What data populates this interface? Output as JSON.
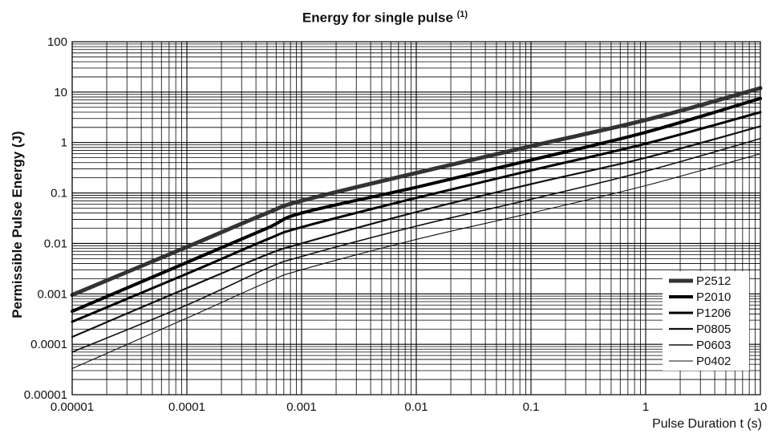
{
  "chart_data": {
    "type": "line",
    "title": "Energy for single pulse",
    "title_superscript": "(1)",
    "xlabel": "Pulse Duration t (s)",
    "ylabel": "Permissible Pulse Energy (J)",
    "x_scale": "log",
    "y_scale": "log",
    "xlim": [
      1e-05,
      10
    ],
    "ylim": [
      1e-05,
      100
    ],
    "x_ticks": [
      "0.00001",
      "0.0001",
      "0.001",
      "0.01",
      "0.1",
      "1",
      "10"
    ],
    "y_ticks": [
      "0.00001",
      "0.0001",
      "0.001",
      "0.01",
      "0.1",
      "1",
      "10",
      "100"
    ],
    "grid": true,
    "legend_position": "bottom-right",
    "series": [
      {
        "name": "P2512",
        "x": [
          1e-05,
          0.0001,
          0.0005,
          0.001,
          0.01,
          0.1,
          1,
          10
        ],
        "y": [
          0.00095,
          0.0085,
          0.04,
          0.07,
          0.25,
          0.85,
          2.8,
          12
        ]
      },
      {
        "name": "P2010",
        "x": [
          1e-05,
          0.0001,
          0.0005,
          0.001,
          0.01,
          0.1,
          1,
          10
        ],
        "y": [
          0.00045,
          0.0042,
          0.02,
          0.04,
          0.13,
          0.45,
          1.6,
          7.5
        ]
      },
      {
        "name": "P1206",
        "x": [
          1e-05,
          0.0001,
          0.0005,
          0.001,
          0.01,
          0.1,
          1,
          10
        ],
        "y": [
          0.00028,
          0.0025,
          0.012,
          0.021,
          0.08,
          0.28,
          0.95,
          4.0
        ]
      },
      {
        "name": "P0805",
        "x": [
          1e-05,
          0.0001,
          0.0005,
          0.001,
          0.01,
          0.1,
          1,
          10
        ],
        "y": [
          0.00014,
          0.0013,
          0.006,
          0.01,
          0.042,
          0.15,
          0.5,
          2.1
        ]
      },
      {
        "name": "P0603",
        "x": [
          1e-05,
          0.0001,
          0.0005,
          0.001,
          0.01,
          0.1,
          1,
          10
        ],
        "y": [
          7e-05,
          0.0006,
          0.0032,
          0.0055,
          0.022,
          0.075,
          0.27,
          1.2
        ]
      },
      {
        "name": "P0402",
        "x": [
          1e-05,
          0.0001,
          0.0005,
          0.001,
          0.01,
          0.1,
          1,
          10
        ],
        "y": [
          3.3e-05,
          0.00033,
          0.0017,
          0.003,
          0.012,
          0.04,
          0.14,
          0.6
        ]
      }
    ]
  }
}
